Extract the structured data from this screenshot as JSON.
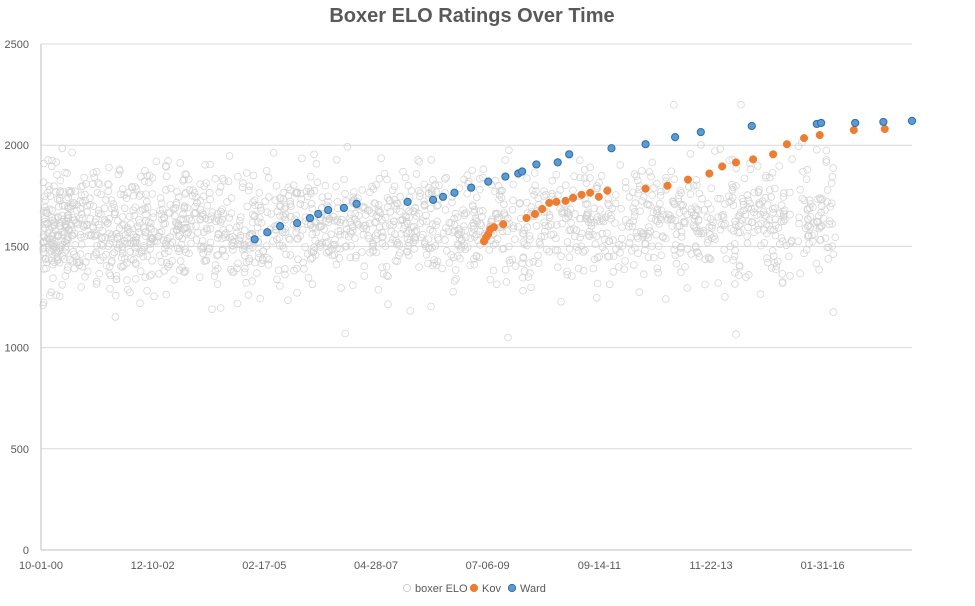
{
  "colors": {
    "gridline": "#d9d9d9",
    "axis": "#bfbfbf",
    "background_series": "#d0d0d0",
    "kov": "#ed7d31",
    "ward": "#5b9bd5",
    "ward_stroke": "#2e6ea8"
  },
  "chart_data": {
    "type": "scatter",
    "title": "Boxer ELO Ratings Over Time",
    "xlabel": "",
    "ylabel": "",
    "x_axis_kind": "date",
    "xlim": [
      "2000-10-01",
      "2017-11-01"
    ],
    "ylim": [
      0,
      2500
    ],
    "y_ticks": [
      0,
      500,
      1000,
      1500,
      2000,
      2500
    ],
    "y_tick_labels": [
      "0",
      "500",
      "1000",
      "1500",
      "2000",
      "2500"
    ],
    "x_ticks": [
      "2000-10-01",
      "2002-12-10",
      "2005-02-17",
      "2007-04-28",
      "2009-07-06",
      "2011-09-14",
      "2013-11-22",
      "2016-01-31"
    ],
    "x_tick_labels": [
      "10-01-00",
      "12-10-02",
      "02-17-05",
      "04-28-07",
      "07-06-09",
      "09-14-11",
      "11-22-13",
      "01-31-16"
    ],
    "grid": true,
    "legend": "bottom",
    "series": [
      {
        "name": "boxer ELO",
        "marker": "hollow-circle",
        "values_summary": "dense cloud of several thousand ratings from 2000-10 to 2016-05, mostly between about 1300 and 1950, min about 1030, max about 2200",
        "points": []
      },
      {
        "name": "Kov",
        "marker": "filled-circle",
        "points": [
          {
            "x": "2009-06-10",
            "y": 1525
          },
          {
            "x": "2009-06-25",
            "y": 1545
          },
          {
            "x": "2009-07-10",
            "y": 1560
          },
          {
            "x": "2009-07-25",
            "y": 1585
          },
          {
            "x": "2009-08-20",
            "y": 1595
          },
          {
            "x": "2009-10-25",
            "y": 1610
          },
          {
            "x": "2010-04-10",
            "y": 1640
          },
          {
            "x": "2010-06-10",
            "y": 1660
          },
          {
            "x": "2010-08-01",
            "y": 1685
          },
          {
            "x": "2010-09-20",
            "y": 1715
          },
          {
            "x": "2010-11-10",
            "y": 1720
          },
          {
            "x": "2011-01-15",
            "y": 1725
          },
          {
            "x": "2011-03-10",
            "y": 1740
          },
          {
            "x": "2011-05-10",
            "y": 1755
          },
          {
            "x": "2011-07-10",
            "y": 1765
          },
          {
            "x": "2011-09-10",
            "y": 1745
          },
          {
            "x": "2011-11-10",
            "y": 1775
          },
          {
            "x": "2012-08-10",
            "y": 1785
          },
          {
            "x": "2013-01-15",
            "y": 1800
          },
          {
            "x": "2013-06-10",
            "y": 1830
          },
          {
            "x": "2013-11-10",
            "y": 1860
          },
          {
            "x": "2014-02-10",
            "y": 1895
          },
          {
            "x": "2014-05-20",
            "y": 1915
          },
          {
            "x": "2014-09-20",
            "y": 1930
          },
          {
            "x": "2015-02-10",
            "y": 1955
          },
          {
            "x": "2015-05-20",
            "y": 2005
          },
          {
            "x": "2015-09-20",
            "y": 2035
          },
          {
            "x": "2016-01-10",
            "y": 2050
          },
          {
            "x": "2016-09-10",
            "y": 2075
          },
          {
            "x": "2017-04-20",
            "y": 2080
          }
        ]
      },
      {
        "name": "Ward",
        "marker": "filled-circle",
        "points": [
          {
            "x": "2004-12-10",
            "y": 1535
          },
          {
            "x": "2005-03-10",
            "y": 1570
          },
          {
            "x": "2005-06-10",
            "y": 1600
          },
          {
            "x": "2005-10-10",
            "y": 1615
          },
          {
            "x": "2006-01-10",
            "y": 1640
          },
          {
            "x": "2006-03-10",
            "y": 1660
          },
          {
            "x": "2006-05-20",
            "y": 1680
          },
          {
            "x": "2006-09-10",
            "y": 1690
          },
          {
            "x": "2006-12-10",
            "y": 1710
          },
          {
            "x": "2007-12-10",
            "y": 1720
          },
          {
            "x": "2008-06-10",
            "y": 1730
          },
          {
            "x": "2008-08-20",
            "y": 1745
          },
          {
            "x": "2008-11-10",
            "y": 1765
          },
          {
            "x": "2009-03-10",
            "y": 1790
          },
          {
            "x": "2009-07-10",
            "y": 1820
          },
          {
            "x": "2009-11-10",
            "y": 1845
          },
          {
            "x": "2010-02-10",
            "y": 1860
          },
          {
            "x": "2010-03-10",
            "y": 1870
          },
          {
            "x": "2010-06-20",
            "y": 1905
          },
          {
            "x": "2010-11-20",
            "y": 1915
          },
          {
            "x": "2011-02-10",
            "y": 1955
          },
          {
            "x": "2011-12-10",
            "y": 1985
          },
          {
            "x": "2012-08-10",
            "y": 2005
          },
          {
            "x": "2013-03-10",
            "y": 2040
          },
          {
            "x": "2013-09-10",
            "y": 2065
          },
          {
            "x": "2014-09-10",
            "y": 2095
          },
          {
            "x": "2015-12-20",
            "y": 2105
          },
          {
            "x": "2016-01-20",
            "y": 2110
          },
          {
            "x": "2016-09-20",
            "y": 2110
          },
          {
            "x": "2017-04-10",
            "y": 2115
          },
          {
            "x": "2017-11-01",
            "y": 2120
          }
        ]
      }
    ]
  }
}
